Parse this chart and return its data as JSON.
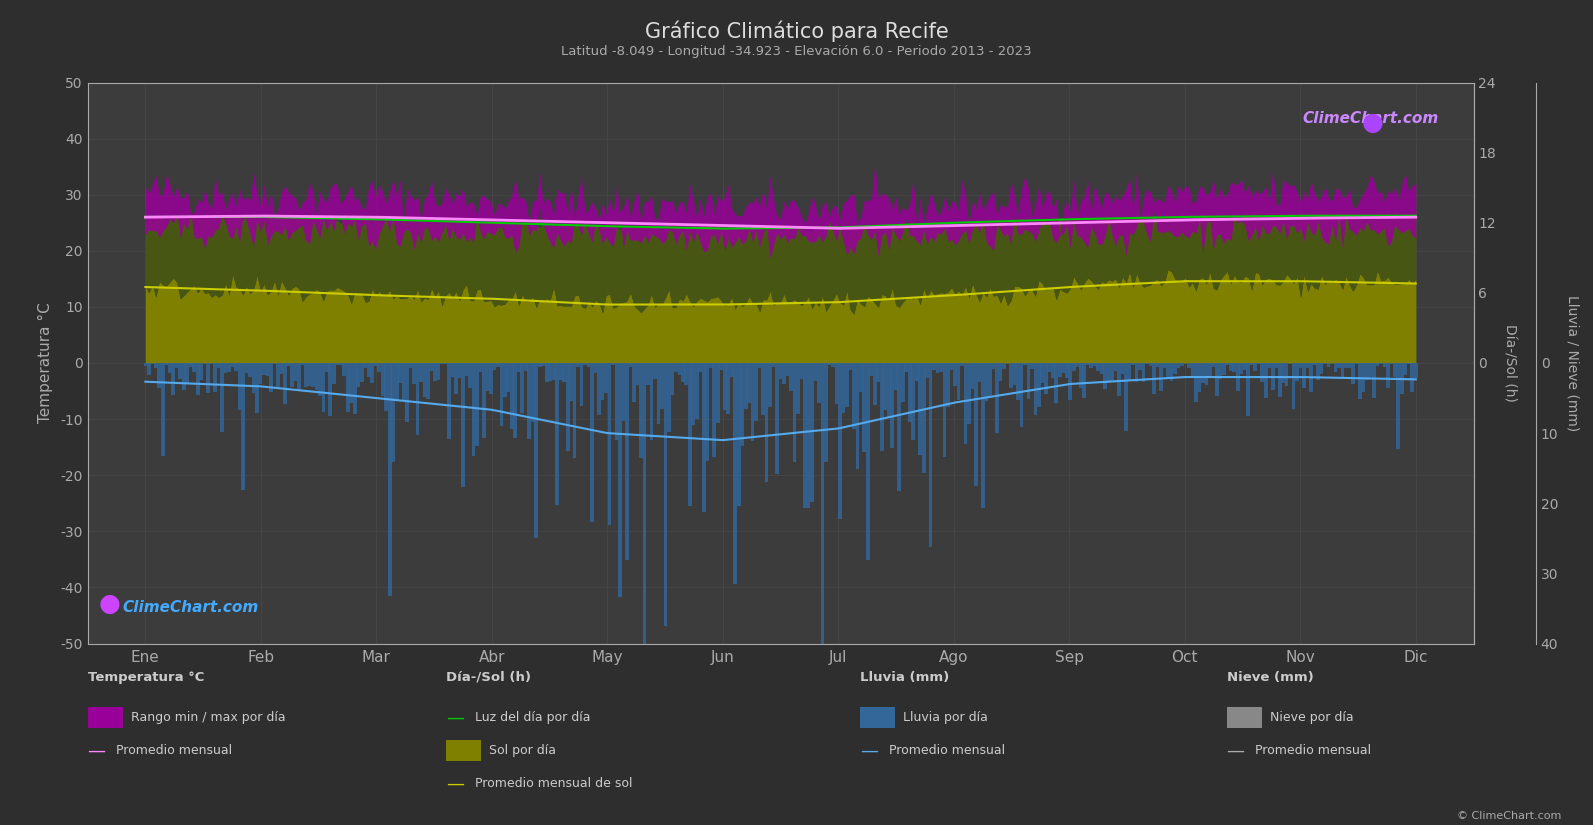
{
  "title": "Gráfico Climático para Recife",
  "subtitle": "Latitud -8.049 - Longitud -34.923 - Elevación 6.0 - Periodo 2013 - 2023",
  "xlabel_months": [
    "Ene",
    "Feb",
    "Mar",
    "Abr",
    "May",
    "Jun",
    "Jul",
    "Ago",
    "Sep",
    "Oct",
    "Nov",
    "Dic"
  ],
  "background_color": "#2e2e2e",
  "plot_bg_color": "#3c3c3c",
  "grid_color": "#505050",
  "temp_avg_monthly": [
    26.0,
    26.2,
    26.0,
    25.5,
    25.0,
    24.5,
    24.0,
    24.5,
    25.0,
    25.5,
    25.8,
    26.0
  ],
  "temp_min_daily_avg": [
    23.5,
    23.5,
    23.4,
    23.2,
    22.8,
    22.5,
    22.2,
    22.5,
    23.0,
    23.4,
    23.6,
    23.5
  ],
  "temp_max_daily_avg": [
    30.5,
    30.2,
    29.8,
    29.2,
    28.5,
    28.0,
    27.8,
    28.5,
    29.5,
    30.0,
    30.5,
    30.8
  ],
  "daylight_avg_h": [
    12.5,
    12.5,
    12.3,
    12.0,
    11.7,
    11.5,
    11.6,
    12.0,
    12.3,
    12.5,
    12.6,
    12.6
  ],
  "sunshine_avg_h": [
    6.5,
    6.2,
    5.8,
    5.5,
    5.0,
    5.0,
    5.2,
    5.8,
    6.5,
    7.0,
    7.0,
    6.8
  ],
  "rainfall_monthly_mm": [
    80,
    100,
    150,
    200,
    300,
    330,
    280,
    170,
    90,
    60,
    60,
    70
  ],
  "color_bg": "#2e2e2e",
  "color_temp_band": "#aa00aa",
  "color_temp_avg": "#ff88ff",
  "color_sunshine_band": "#808000",
  "color_sunshine_line": "#cccc00",
  "color_daylight_line": "#00cc00",
  "color_rain_bar": "#336699",
  "color_rain_line": "#55aaee",
  "color_title": "#dddddd",
  "color_axis": "#aaaaaa",
  "color_grid": "#505050"
}
